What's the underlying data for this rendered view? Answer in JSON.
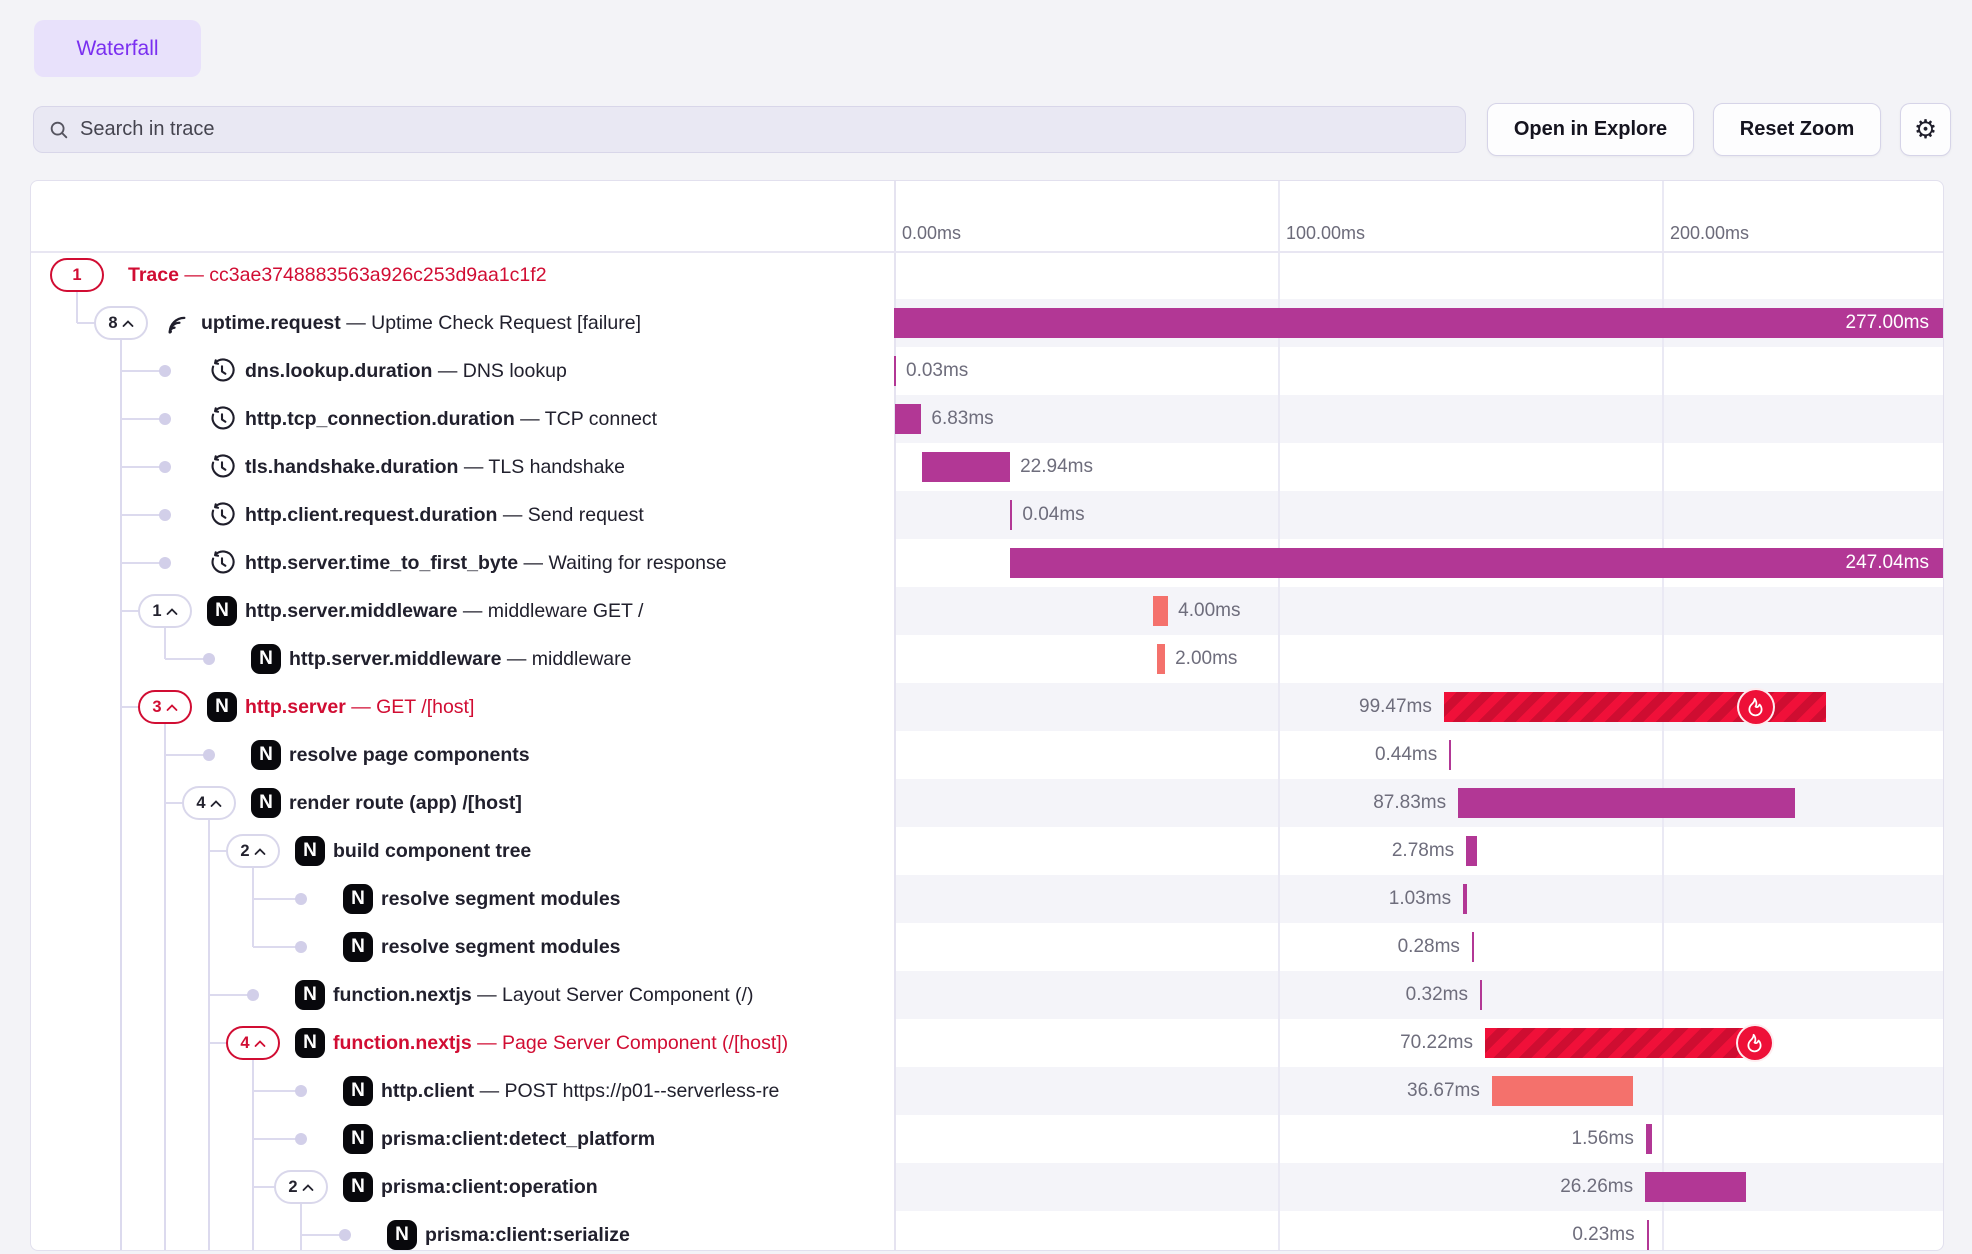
{
  "tab": {
    "label": "Waterfall"
  },
  "toolbar": {
    "search_placeholder": "Search in trace",
    "open_in_explore": "Open in Explore",
    "reset_zoom": "Reset Zoom",
    "settings_icon": "gear-icon"
  },
  "axis": {
    "ticks": [
      {
        "label": "0.00ms",
        "ms": 0
      },
      {
        "label": "100.00ms",
        "ms": 100
      },
      {
        "label": "200.00ms",
        "ms": 200
      }
    ]
  },
  "colors": {
    "accent_purple": "#7a2ff0",
    "magenta_bar": "#b23795",
    "salmon_bar": "#f4716c",
    "error_stripe_light": "#f01039",
    "error_stripe_dark": "#cf0d31",
    "error_text": "#d10d33",
    "fire_badge": "#ee1038",
    "duration_text": "#6e6d7c"
  },
  "rows": [
    {
      "name": "Trace",
      "sep": "—",
      "desc": "cc3ae3748883563a926c253d9aa1c1f2",
      "error": true,
      "depth": 0,
      "pill": {
        "num": "1",
        "caret": false,
        "error": true
      },
      "icon": "none",
      "bar": null
    },
    {
      "name": "uptime.request",
      "sep": "—",
      "desc": "Uptime Check Request [failure]",
      "error": false,
      "depth": 1,
      "pill": {
        "num": "8",
        "caret": true,
        "error": false
      },
      "icon": "wave",
      "bar": {
        "start_ms": 0,
        "dur_ms": 277.0,
        "style": "magenta",
        "label": "277.00ms",
        "label_pos": "inside",
        "fire": "none"
      }
    },
    {
      "name": "dns.lookup.duration",
      "sep": "—",
      "desc": "DNS lookup",
      "error": false,
      "depth": 2,
      "pill": null,
      "icon": "clock",
      "bar": {
        "start_ms": 0,
        "dur_ms": 0.03,
        "style": "magenta",
        "label": "0.03ms",
        "label_pos": "right",
        "fire": "none"
      }
    },
    {
      "name": "http.tcp_connection.duration",
      "sep": "—",
      "desc": "TCP connect",
      "error": false,
      "depth": 2,
      "pill": null,
      "icon": "clock",
      "bar": {
        "start_ms": 0.3,
        "dur_ms": 6.83,
        "style": "magenta",
        "label": "6.83ms",
        "label_pos": "right",
        "fire": "none"
      }
    },
    {
      "name": "tls.handshake.duration",
      "sep": "—",
      "desc": "TLS handshake",
      "error": false,
      "depth": 2,
      "pill": null,
      "icon": "clock",
      "bar": {
        "start_ms": 7.3,
        "dur_ms": 22.94,
        "style": "magenta",
        "label": "22.94ms",
        "label_pos": "right",
        "fire": "none"
      }
    },
    {
      "name": "http.client.request.duration",
      "sep": "—",
      "desc": "Send request",
      "error": false,
      "depth": 2,
      "pill": null,
      "icon": "clock",
      "bar": {
        "start_ms": 30.3,
        "dur_ms": 0.04,
        "style": "magenta",
        "label": "0.04ms",
        "label_pos": "right",
        "fire": "none"
      }
    },
    {
      "name": "http.server.time_to_first_byte",
      "sep": "—",
      "desc": "Waiting for response",
      "error": false,
      "depth": 2,
      "pill": null,
      "icon": "clock",
      "bar": {
        "start_ms": 30.3,
        "dur_ms": 247.04,
        "style": "magenta",
        "label": "247.04ms",
        "label_pos": "inside",
        "fire": "none"
      }
    },
    {
      "name": "http.server.middleware",
      "sep": "—",
      "desc": "middleware GET /",
      "error": false,
      "depth": 2,
      "pill": {
        "num": "1",
        "caret": true,
        "error": false
      },
      "icon": "nextjs",
      "bar": {
        "start_ms": 67.4,
        "dur_ms": 4.0,
        "style": "salmon",
        "label": "4.00ms",
        "label_pos": "right",
        "fire": "none"
      }
    },
    {
      "name": "http.server.middleware",
      "sep": "—",
      "desc": "middleware",
      "error": false,
      "depth": 3,
      "pill": null,
      "icon": "nextjs",
      "bar": {
        "start_ms": 68.6,
        "dur_ms": 2.0,
        "style": "salmon",
        "label": "2.00ms",
        "label_pos": "right",
        "fire": "none"
      }
    },
    {
      "name": "http.server",
      "sep": "—",
      "desc": "GET /[host]",
      "error": true,
      "depth": 2,
      "pill": {
        "num": "3",
        "caret": true,
        "error": true
      },
      "icon": "nextjs",
      "bar": {
        "start_ms": 143.2,
        "dur_ms": 99.47,
        "style": "error",
        "label": "99.47ms",
        "label_pos": "left",
        "fire": "inline"
      }
    },
    {
      "name": "resolve page components",
      "sep": "",
      "desc": "",
      "error": false,
      "depth": 3,
      "pill": null,
      "icon": "nextjs",
      "bar": {
        "start_ms": 144.6,
        "dur_ms": 0.44,
        "style": "magenta",
        "label": "0.44ms",
        "label_pos": "left",
        "fire": "none"
      }
    },
    {
      "name": "render route (app) /[host]",
      "sep": "",
      "desc": "",
      "error": false,
      "depth": 3,
      "pill": {
        "num": "4",
        "caret": true,
        "error": false
      },
      "icon": "nextjs",
      "bar": {
        "start_ms": 146.9,
        "dur_ms": 87.83,
        "style": "magenta",
        "label": "87.83ms",
        "label_pos": "left",
        "fire": "none"
      }
    },
    {
      "name": "build component tree",
      "sep": "",
      "desc": "",
      "error": false,
      "depth": 4,
      "pill": {
        "num": "2",
        "caret": true,
        "error": false
      },
      "icon": "nextjs",
      "bar": {
        "start_ms": 149.0,
        "dur_ms": 2.78,
        "style": "magenta",
        "label": "2.78ms",
        "label_pos": "left",
        "fire": "none"
      }
    },
    {
      "name": "resolve segment modules",
      "sep": "",
      "desc": "",
      "error": false,
      "depth": 5,
      "pill": null,
      "icon": "nextjs",
      "bar": {
        "start_ms": 148.2,
        "dur_ms": 1.03,
        "style": "magenta",
        "label": "1.03ms",
        "label_pos": "left",
        "fire": "none"
      }
    },
    {
      "name": "resolve segment modules",
      "sep": "",
      "desc": "",
      "error": false,
      "depth": 5,
      "pill": null,
      "icon": "nextjs",
      "bar": {
        "start_ms": 150.5,
        "dur_ms": 0.28,
        "style": "magenta",
        "label": "0.28ms",
        "label_pos": "left",
        "fire": "none"
      }
    },
    {
      "name": "function.nextjs",
      "sep": "—",
      "desc": "Layout Server Component (/)",
      "error": false,
      "depth": 4,
      "pill": null,
      "icon": "nextjs",
      "bar": {
        "start_ms": 152.6,
        "dur_ms": 0.32,
        "style": "magenta",
        "label": "0.32ms",
        "label_pos": "left",
        "fire": "none"
      }
    },
    {
      "name": "function.nextjs",
      "sep": "—",
      "desc": "Page Server Component (/[host])",
      "error": true,
      "depth": 4,
      "pill": {
        "num": "4",
        "caret": true,
        "error": true
      },
      "icon": "nextjs",
      "bar": {
        "start_ms": 153.9,
        "dur_ms": 70.22,
        "style": "error",
        "label": "70.22ms",
        "label_pos": "left",
        "fire": "end"
      }
    },
    {
      "name": "http.client",
      "sep": "—",
      "desc": "POST https://p01--serverless-re",
      "error": false,
      "depth": 5,
      "pill": null,
      "icon": "nextjs",
      "bar": {
        "start_ms": 155.7,
        "dur_ms": 36.67,
        "style": "salmon",
        "label": "36.67ms",
        "label_pos": "left",
        "fire": "none"
      }
    },
    {
      "name": "prisma:client:detect_platform",
      "sep": "",
      "desc": "",
      "error": false,
      "depth": 5,
      "pill": null,
      "icon": "nextjs",
      "bar": {
        "start_ms": 195.8,
        "dur_ms": 1.56,
        "style": "magenta",
        "label": "1.56ms",
        "label_pos": "left",
        "fire": "none"
      }
    },
    {
      "name": "prisma:client:operation",
      "sep": "",
      "desc": "",
      "error": false,
      "depth": 5,
      "pill": {
        "num": "2",
        "caret": true,
        "error": false
      },
      "icon": "nextjs",
      "bar": {
        "start_ms": 195.6,
        "dur_ms": 26.26,
        "style": "magenta",
        "label": "26.26ms",
        "label_pos": "left",
        "fire": "none"
      }
    },
    {
      "name": "prisma:client:serialize",
      "sep": "",
      "desc": "",
      "error": false,
      "depth": 6,
      "pill": null,
      "icon": "nextjs",
      "bar": {
        "start_ms": 196.0,
        "dur_ms": 0.23,
        "style": "magenta",
        "label": "0.23ms",
        "label_pos": "left",
        "fire": "none"
      }
    }
  ]
}
